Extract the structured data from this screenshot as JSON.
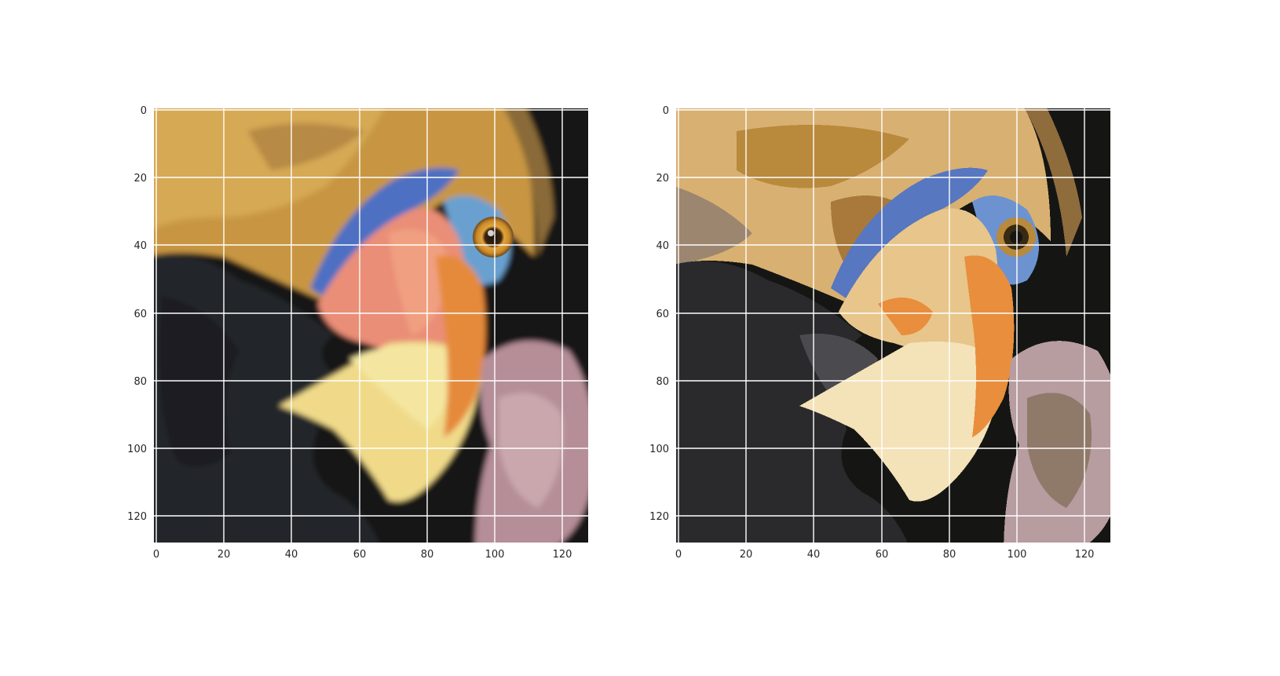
{
  "figure": {
    "panels": [
      {
        "id": "original",
        "image_description_icon": "parrot-photo-icon",
        "x_ticks": [
          "0",
          "20",
          "40",
          "60",
          "80",
          "100",
          "120"
        ],
        "y_ticks": [
          "0",
          "20",
          "40",
          "60",
          "80",
          "100",
          "120"
        ],
        "x_range": [
          0,
          128
        ],
        "y_range": [
          0,
          128
        ],
        "grid": true
      },
      {
        "id": "quantized",
        "image_description_icon": "parrot-quantized-icon",
        "x_ticks": [
          "0",
          "20",
          "40",
          "60",
          "80",
          "100",
          "120"
        ],
        "y_ticks": [
          "0",
          "20",
          "40",
          "60",
          "80",
          "100",
          "120"
        ],
        "x_range": [
          0,
          128
        ],
        "y_range": [
          0,
          128
        ],
        "grid": true
      }
    ],
    "colors": {
      "dark": "#151614",
      "black_feathers": "#262626",
      "tan": "#d8b072",
      "gold": "#b9893c",
      "brown": "#8f6c3c",
      "blue": "#5777c0",
      "cream": "#f4e2b8",
      "orange": "#e88e3c",
      "mauve": "#b79ca0",
      "gray": "#4a4a4f"
    }
  }
}
